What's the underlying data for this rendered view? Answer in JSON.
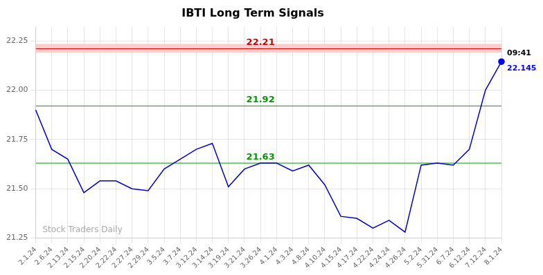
{
  "chart_data": {
    "type": "line",
    "title": "IBTI Long Term Signals",
    "categories": [
      "2.1.24",
      "2.6.24",
      "2.13.24",
      "2.15.24",
      "2.20.24",
      "2.22.24",
      "2.27.24",
      "2.29.24",
      "3.5.24",
      "3.7.24",
      "3.12.24",
      "3.14.24",
      "3.19.24",
      "3.21.24",
      "3.26.24",
      "4.1.24",
      "4.3.24",
      "4.8.24",
      "4.10.24",
      "4.15.24",
      "4.17.24",
      "4.22.24",
      "4.24.24",
      "4.26.24",
      "5.2.24",
      "5.31.24",
      "6.7.24",
      "6.12.24",
      "7.12.24",
      "8.1.24"
    ],
    "values": [
      21.9,
      21.7,
      21.65,
      21.48,
      21.54,
      21.54,
      21.5,
      21.49,
      21.6,
      21.65,
      21.7,
      21.73,
      21.51,
      21.6,
      21.63,
      21.63,
      21.59,
      21.62,
      21.52,
      21.36,
      21.35,
      21.3,
      21.34,
      21.28,
      21.62,
      21.63,
      21.62,
      21.7,
      22.0,
      22.145
    ],
    "color": "#0000cc",
    "ylim": [
      21.25,
      22.32
    ],
    "yticks": [
      21.25,
      {
        "value": 21.5,
        "label": "21.50"
      },
      {
        "value": 21.75,
        "label": "21.75"
      },
      {
        "value": 22.0,
        "label": "22.00"
      },
      {
        "value": 22.25,
        "label": "22.25"
      }
    ],
    "grid": true,
    "reference_lines": [
      {
        "value": 22.21,
        "label": "22.21",
        "color": "#cc0000",
        "band": [
          22.19,
          22.235
        ],
        "band_color": "#ffcccc"
      },
      {
        "value": 21.92,
        "label": "21.92",
        "color": "#009900"
      },
      {
        "value": 21.63,
        "label": "21.63",
        "color": "#009900"
      }
    ],
    "last_point": {
      "value": 22.145,
      "time": "09:41",
      "color": "#0000ff"
    },
    "watermark": "Stock Traders Daily"
  }
}
